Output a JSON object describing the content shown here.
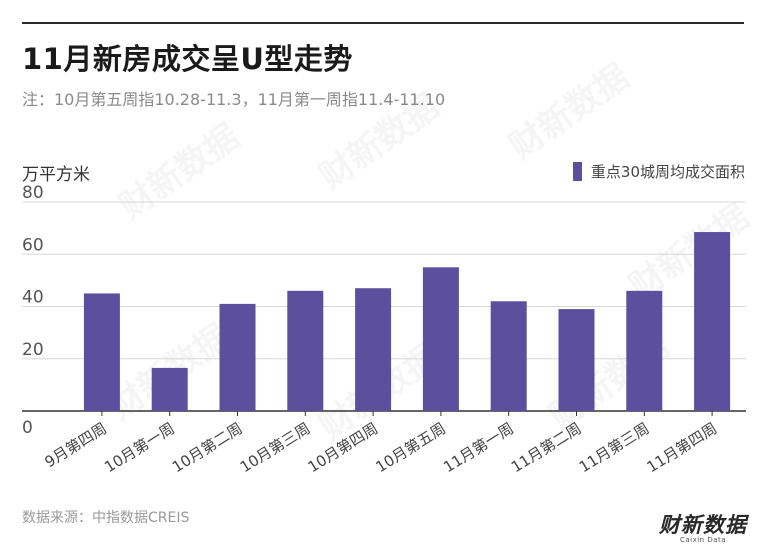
{
  "header": {
    "title": "11月新房成交呈U型走势",
    "subtitle": "注：10月第五周指10.28-11.3，11月第一周指11.4-11.10"
  },
  "footer": {
    "source": "数据来源：中指数据CREIS",
    "logo_main": "财新数据",
    "logo_sub": "Caixin Data"
  },
  "colors": {
    "bar": "#5b4f9e",
    "grid": "#d8d8d8",
    "axis": "#333333",
    "tick": "#555555"
  },
  "chart_data": {
    "type": "bar",
    "ylabel": "万平方米",
    "ylim": [
      0,
      80
    ],
    "yticks": [
      0,
      20,
      40,
      60,
      80
    ],
    "grid": true,
    "legend_position": "top-right",
    "categories": [
      "9月第四周",
      "10月第一周",
      "10月第二周",
      "10月第三周",
      "10月第四周",
      "10月第五周",
      "11月第一周",
      "11月第二周",
      "11月第三周",
      "11月第四周"
    ],
    "series": [
      {
        "name": "重点30城周均成交面积",
        "values": [
          45,
          16.5,
          41,
          46,
          47,
          55,
          42,
          39,
          46,
          68.5
        ]
      }
    ]
  }
}
